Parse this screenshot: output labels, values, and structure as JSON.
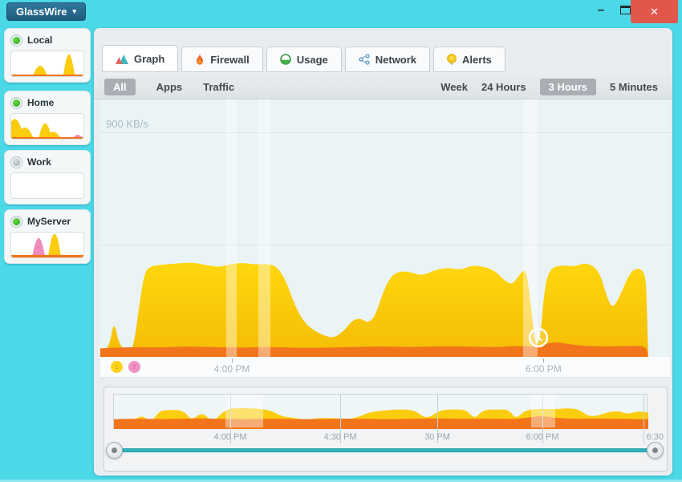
{
  "window": {
    "app_button": {
      "label": "GlassWire",
      "arrow": "▾"
    },
    "controls": {
      "minimize": "–",
      "close": "✕"
    }
  },
  "sidebar": {
    "items": [
      {
        "label": "Local",
        "status": "online",
        "sparkline": {
          "baseline_h": 2,
          "peaks": [
            {
              "x": 0.4,
              "h": 0.42,
              "w": 0.1,
              "color": "yellow"
            },
            {
              "x": 0.8,
              "h": 0.88,
              "w": 0.08,
              "color": "yellow"
            }
          ]
        }
      },
      {
        "label": "Home",
        "status": "online",
        "sparkline": {
          "baseline_h": 2,
          "peaks": [
            {
              "x": 0.05,
              "h": 0.8,
              "w": 0.13,
              "color": "yellow"
            },
            {
              "x": 0.19,
              "h": 0.45,
              "w": 0.12,
              "color": "yellow"
            },
            {
              "x": 0.47,
              "h": 0.62,
              "w": 0.09,
              "color": "yellow"
            },
            {
              "x": 0.58,
              "h": 0.28,
              "w": 0.11,
              "color": "yellow"
            },
            {
              "x": 0.92,
              "h": 0.16,
              "w": 0.07,
              "color": "pink"
            }
          ]
        }
      },
      {
        "label": "Work",
        "status": "offline",
        "sparkline": {
          "baseline_h": 0,
          "peaks": []
        }
      },
      {
        "label": "MyServer",
        "status": "online",
        "sparkline": {
          "baseline_h": 3,
          "peaks": [
            {
              "x": 0.38,
              "h": 0.78,
              "w": 0.09,
              "color": "pink"
            },
            {
              "x": 0.6,
              "h": 0.95,
              "w": 0.09,
              "color": "yellow"
            }
          ]
        }
      }
    ]
  },
  "tabs": [
    {
      "label": "Graph",
      "icon": "graph-icon",
      "active": true
    },
    {
      "label": "Firewall",
      "icon": "firewall-icon",
      "active": false
    },
    {
      "label": "Usage",
      "icon": "usage-icon",
      "active": false
    },
    {
      "label": "Network",
      "icon": "network-icon",
      "active": false
    },
    {
      "label": "Alerts",
      "icon": "alerts-icon",
      "active": false
    }
  ],
  "filters": {
    "left": [
      "All",
      "Apps",
      "Traffic"
    ],
    "left_selected": "All",
    "right": [
      "Week",
      "24 Hours",
      "3 Hours",
      "5 Minutes"
    ],
    "right_selected": "3 Hours"
  },
  "colors": {
    "accent_cyan": "#4BD8E7",
    "download_yellow": "#FBCB10",
    "upload_orange": "#F2751B",
    "pink": "#F08BBE",
    "selected_chip": "#A9AEB4",
    "close_red": "#E2574C",
    "led_green": "#3DBE2B"
  },
  "chart_data": {
    "main_graph": {
      "type": "area",
      "unit": "KB/s",
      "ylim": [
        0,
        900
      ],
      "y_max_label": "900 KB/s",
      "gridlines_kbps": [
        900,
        450
      ],
      "legend": [
        {
          "name": "download",
          "icon": "download-arrow-icon"
        },
        {
          "name": "upload",
          "icon": "upload-arrow-icon"
        }
      ],
      "x_ticks": [
        {
          "label": "4:00 PM",
          "pos": 0.231
        },
        {
          "label": "6:00 PM",
          "pos": 0.778
        }
      ],
      "inactive_bands": [
        [
          0.221,
          0.24
        ],
        [
          0.278,
          0.298
        ],
        [
          0.742,
          0.767
        ]
      ],
      "marker": {
        "icon": "clock-icon",
        "pos": 0.769
      },
      "series": [
        {
          "name": "download",
          "color": "#FBC908",
          "points": [
            [
              0.0,
              18
            ],
            [
              0.015,
              25
            ],
            [
              0.024,
              150
            ],
            [
              0.032,
              55
            ],
            [
              0.045,
              22
            ],
            [
              0.058,
              30
            ],
            [
              0.068,
              200
            ],
            [
              0.078,
              345
            ],
            [
              0.09,
              365
            ],
            [
              0.11,
              370
            ],
            [
              0.14,
              376
            ],
            [
              0.165,
              378
            ],
            [
              0.19,
              366
            ],
            [
              0.21,
              360
            ],
            [
              0.228,
              372
            ],
            [
              0.25,
              377
            ],
            [
              0.272,
              370
            ],
            [
              0.295,
              373
            ],
            [
              0.31,
              362
            ],
            [
              0.325,
              310
            ],
            [
              0.34,
              215
            ],
            [
              0.357,
              140
            ],
            [
              0.375,
              105
            ],
            [
              0.393,
              85
            ],
            [
              0.41,
              75
            ],
            [
              0.428,
              105
            ],
            [
              0.443,
              148
            ],
            [
              0.457,
              155
            ],
            [
              0.47,
              135
            ],
            [
              0.483,
              165
            ],
            [
              0.497,
              265
            ],
            [
              0.512,
              330
            ],
            [
              0.53,
              345
            ],
            [
              0.548,
              338
            ],
            [
              0.565,
              325
            ],
            [
              0.59,
              350
            ],
            [
              0.612,
              358
            ],
            [
              0.633,
              348
            ],
            [
              0.653,
              368
            ],
            [
              0.675,
              360
            ],
            [
              0.693,
              345
            ],
            [
              0.71,
              305
            ],
            [
              0.724,
              288
            ],
            [
              0.738,
              338
            ],
            [
              0.748,
              352
            ],
            [
              0.756,
              200
            ],
            [
              0.764,
              42
            ],
            [
              0.772,
              65
            ],
            [
              0.78,
              285
            ],
            [
              0.79,
              355
            ],
            [
              0.81,
              368
            ],
            [
              0.83,
              362
            ],
            [
              0.85,
              376
            ],
            [
              0.866,
              365
            ],
            [
              0.878,
              330
            ],
            [
              0.89,
              235
            ],
            [
              0.9,
              192
            ],
            [
              0.915,
              258
            ],
            [
              0.928,
              330
            ],
            [
              0.94,
              356
            ],
            [
              0.952,
              350
            ],
            [
              0.958,
              310
            ],
            [
              0.96,
              150
            ],
            [
              0.962,
              0
            ]
          ]
        },
        {
          "name": "upload",
          "color": "#F2751B",
          "points": [
            [
              0.0,
              34
            ],
            [
              0.05,
              40
            ],
            [
              0.1,
              37
            ],
            [
              0.15,
              42
            ],
            [
              0.2,
              39
            ],
            [
              0.25,
              37
            ],
            [
              0.3,
              40
            ],
            [
              0.35,
              36
            ],
            [
              0.4,
              37
            ],
            [
              0.45,
              40
            ],
            [
              0.5,
              42
            ],
            [
              0.55,
              39
            ],
            [
              0.6,
              43
            ],
            [
              0.65,
              41
            ],
            [
              0.7,
              39
            ],
            [
              0.725,
              44
            ],
            [
              0.75,
              42
            ],
            [
              0.765,
              40
            ],
            [
              0.78,
              52
            ],
            [
              0.8,
              60
            ],
            [
              0.82,
              52
            ],
            [
              0.85,
              44
            ],
            [
              0.88,
              42
            ],
            [
              0.91,
              43
            ],
            [
              0.94,
              44
            ],
            [
              0.958,
              42
            ],
            [
              0.962,
              0
            ]
          ]
        }
      ]
    },
    "minimap": {
      "type": "area",
      "note": "overview timeline, relative heights 0-1",
      "x_ticks": [
        {
          "label": "4:00 PM",
          "pos": 0.219
        },
        {
          "label": "4:30 PM",
          "pos": 0.425
        },
        {
          "label": "30 PM",
          "pos": 0.607
        },
        {
          "label": "6:00 PM",
          "pos": 0.803
        },
        {
          "label": "6:30",
          "pos": 0.992
        }
      ],
      "inactive_bands": [
        [
          0.209,
          0.28
        ],
        [
          0.783,
          0.829
        ]
      ],
      "series": [
        {
          "name": "download",
          "color": "#FCCD0E",
          "points": [
            [
              0.0,
              0.08
            ],
            [
              0.03,
              0.12
            ],
            [
              0.05,
              0.45
            ],
            [
              0.07,
              0.2
            ],
            [
              0.085,
              0.55
            ],
            [
              0.1,
              0.58
            ],
            [
              0.13,
              0.58
            ],
            [
              0.145,
              0.25
            ],
            [
              0.165,
              0.52
            ],
            [
              0.185,
              0.2
            ],
            [
              0.21,
              0.62
            ],
            [
              0.24,
              0.64
            ],
            [
              0.275,
              0.62
            ],
            [
              0.295,
              0.55
            ],
            [
              0.315,
              0.38
            ],
            [
              0.335,
              0.35
            ],
            [
              0.355,
              0.28
            ],
            [
              0.38,
              0.33
            ],
            [
              0.41,
              0.34
            ],
            [
              0.435,
              0.3
            ],
            [
              0.455,
              0.35
            ],
            [
              0.475,
              0.5
            ],
            [
              0.51,
              0.58
            ],
            [
              0.545,
              0.6
            ],
            [
              0.565,
              0.55
            ],
            [
              0.585,
              0.3
            ],
            [
              0.61,
              0.58
            ],
            [
              0.64,
              0.6
            ],
            [
              0.66,
              0.58
            ],
            [
              0.675,
              0.3
            ],
            [
              0.69,
              0.58
            ],
            [
              0.72,
              0.6
            ],
            [
              0.74,
              0.58
            ],
            [
              0.752,
              0.3
            ],
            [
              0.77,
              0.58
            ],
            [
              0.8,
              0.62
            ],
            [
              0.825,
              0.6
            ],
            [
              0.85,
              0.64
            ],
            [
              0.87,
              0.6
            ],
            [
              0.885,
              0.42
            ],
            [
              0.9,
              0.38
            ],
            [
              0.925,
              0.52
            ],
            [
              0.945,
              0.55
            ],
            [
              0.962,
              0.45
            ],
            [
              0.98,
              0.55
            ],
            [
              1.0,
              0.5
            ]
          ]
        },
        {
          "name": "upload",
          "color": "#F2751B",
          "points": [
            [
              0.0,
              0.3
            ],
            [
              0.05,
              0.32
            ],
            [
              0.1,
              0.3
            ],
            [
              0.15,
              0.33
            ],
            [
              0.2,
              0.31
            ],
            [
              0.25,
              0.3
            ],
            [
              0.3,
              0.32
            ],
            [
              0.35,
              0.3
            ],
            [
              0.4,
              0.31
            ],
            [
              0.45,
              0.32
            ],
            [
              0.5,
              0.3
            ],
            [
              0.55,
              0.31
            ],
            [
              0.6,
              0.33
            ],
            [
              0.65,
              0.31
            ],
            [
              0.7,
              0.32
            ],
            [
              0.75,
              0.3
            ],
            [
              0.78,
              0.36
            ],
            [
              0.8,
              0.4
            ],
            [
              0.82,
              0.35
            ],
            [
              0.86,
              0.31
            ],
            [
              0.9,
              0.32
            ],
            [
              0.95,
              0.31
            ],
            [
              1.0,
              0.3
            ]
          ]
        }
      ]
    }
  }
}
